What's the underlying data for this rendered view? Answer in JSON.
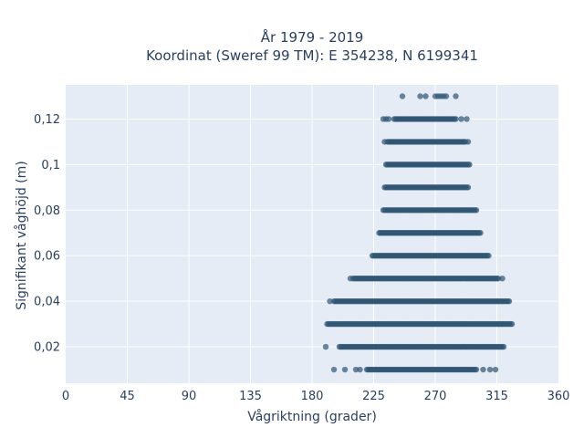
{
  "chart_data": {
    "type": "scatter",
    "title_line1": "År 1979 - 2019",
    "title_line2": "Koordinat (Sweref 99 TM): E 354238, N 6199341",
    "xlabel": "Vågriktning (grader)",
    "ylabel": "Signifikant våghöjd (m)",
    "xlim": [
      0,
      360
    ],
    "ylim": [
      0.004,
      0.135
    ],
    "xticks": [
      0,
      45,
      90,
      135,
      180,
      225,
      270,
      315,
      360
    ],
    "xtick_labels": [
      "0",
      "45",
      "90",
      "135",
      "180",
      "225",
      "270",
      "315",
      "360"
    ],
    "yticks": [
      0.02,
      0.04,
      0.06,
      0.08,
      0.1,
      0.12
    ],
    "ytick_labels": [
      "0,02",
      "0,04",
      "0,06",
      "0,08",
      "0,1",
      "0,12"
    ],
    "grid": true,
    "marker_color": "#2f5673",
    "plot_bg": "#e5ecf6",
    "series": [
      {
        "bands": [
          {
            "y": 0.13,
            "dense": null,
            "scattered": [
              246,
              259,
              263,
              270,
              272,
              274,
              276,
              278,
              285
            ]
          },
          {
            "y": 0.12,
            "dense": [
              240,
              285
            ],
            "scattered": [
              232,
              234,
              236,
              289,
              293
            ]
          },
          {
            "y": 0.11,
            "dense": [
              235,
              292
            ],
            "scattered": [
              233,
              294
            ]
          },
          {
            "y": 0.1,
            "dense": [
              234,
              295
            ],
            "scattered": []
          },
          {
            "y": 0.09,
            "dense": [
              233,
              294
            ],
            "scattered": []
          },
          {
            "y": 0.08,
            "dense": [
              232,
              300
            ],
            "scattered": []
          },
          {
            "y": 0.07,
            "dense": [
              229,
              303
            ],
            "scattered": []
          },
          {
            "y": 0.06,
            "dense": [
              224,
              309
            ],
            "scattered": []
          },
          {
            "y": 0.05,
            "dense": [
              210,
              316
            ],
            "scattered": [
              208,
              319
            ]
          },
          {
            "y": 0.04,
            "dense": [
              196,
              324
            ],
            "scattered": [
              193
            ]
          },
          {
            "y": 0.03,
            "dense": [
              191,
              326
            ],
            "scattered": []
          },
          {
            "y": 0.02,
            "dense": [
              200,
              320
            ],
            "scattered": [
              190
            ]
          },
          {
            "y": 0.01,
            "dense": [
              220,
              300
            ],
            "scattered": [
              196,
              204,
              212,
              215,
              305,
              310,
              314
            ]
          }
        ]
      }
    ]
  }
}
